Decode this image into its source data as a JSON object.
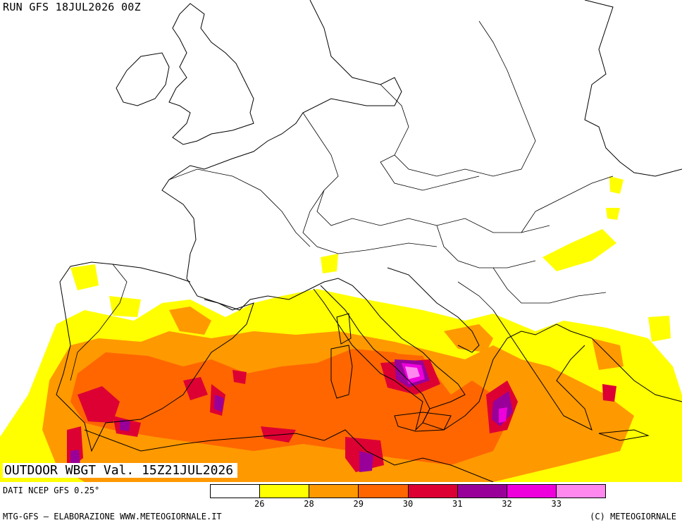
{
  "run_title": "RUN GFS 18JUL2026 00Z",
  "map_title": "OUTDOOR WBGT Val. 15Z21JUL2026",
  "data_source": "DATI NCEP GFS 0.25°",
  "credits_left": "MTG-GFS — ELABORAZIONE WWW.METEOGIORNALE.IT",
  "credits_right": "(C) METEOGIORNALE",
  "legend": {
    "colors": [
      "#ffffff",
      "#ffff00",
      "#ff9900",
      "#ff6600",
      "#dd0033",
      "#990099",
      "#ee00dd",
      "#ff88ee"
    ],
    "ticks": [
      "26",
      "28",
      "29",
      "30",
      "31",
      "32",
      "33"
    ]
  },
  "colors": {
    "c26": "#ffff00",
    "c28": "#ff9900",
    "c29": "#ff6600",
    "c30": "#dd0033",
    "c31": "#990099",
    "c32": "#ee00dd",
    "c33": "#ff88ee"
  }
}
